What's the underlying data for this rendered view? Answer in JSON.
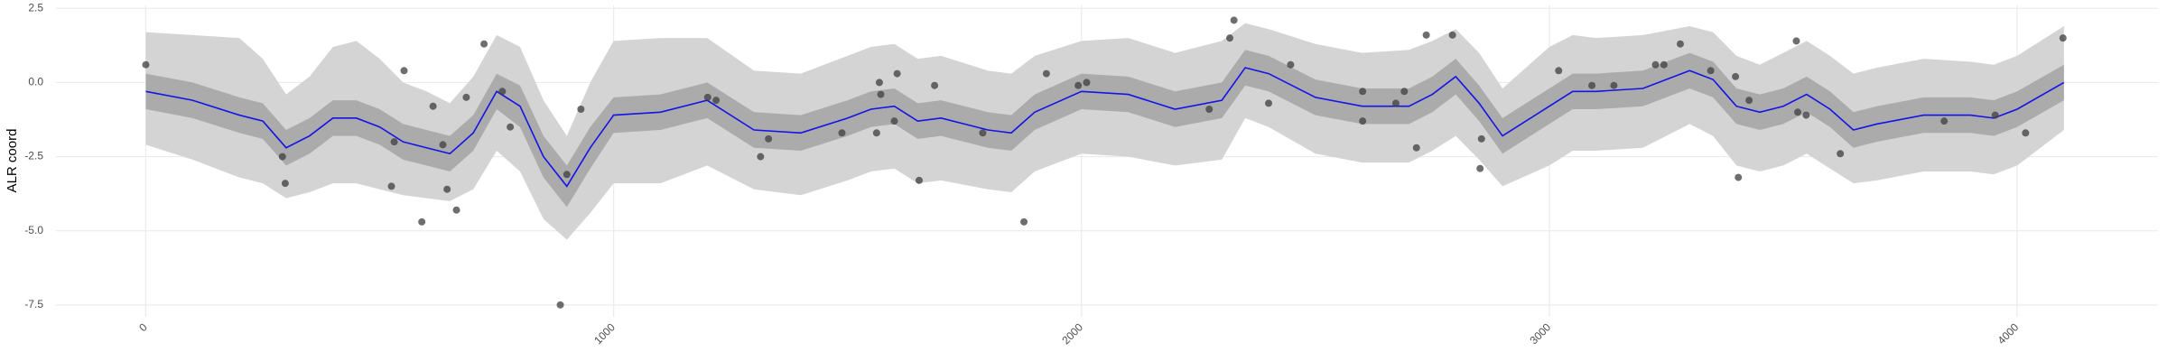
{
  "chart_data": {
    "type": "line",
    "y_label": "ALR coord",
    "x": [
      0,
      100,
      200,
      250,
      300,
      350,
      400,
      450,
      500,
      550,
      600,
      650,
      700,
      750,
      800,
      850,
      900,
      950,
      1000,
      1100,
      1200,
      1300,
      1400,
      1500,
      1550,
      1600,
      1650,
      1700,
      1800,
      1850,
      1900,
      2000,
      2100,
      2200,
      2300,
      2350,
      2400,
      2500,
      2600,
      2700,
      2750,
      2800,
      2850,
      2900,
      3000,
      3050,
      3100,
      3200,
      3300,
      3350,
      3400,
      3450,
      3500,
      3550,
      3600,
      3650,
      3700,
      3800,
      3900,
      3950,
      4000,
      4100
    ],
    "line": {
      "color": "#1414e6",
      "values": [
        -0.3,
        -0.6,
        -1.1,
        -1.3,
        -2.2,
        -1.8,
        -1.2,
        -1.2,
        -1.5,
        -2.0,
        -2.2,
        -2.4,
        -1.7,
        -0.3,
        -0.8,
        -2.5,
        -3.5,
        -2.2,
        -1.1,
        -1.0,
        -0.6,
        -1.6,
        -1.7,
        -1.2,
        -0.9,
        -0.8,
        -1.3,
        -1.2,
        -1.6,
        -1.7,
        -1.0,
        -0.3,
        -0.4,
        -0.9,
        -0.6,
        0.5,
        0.3,
        -0.5,
        -0.8,
        -0.8,
        -0.4,
        0.2,
        -0.7,
        -1.8,
        -0.8,
        -0.3,
        -0.3,
        -0.2,
        0.4,
        0.1,
        -0.8,
        -1.0,
        -0.8,
        -0.4,
        -0.9,
        -1.6,
        -1.4,
        -1.1,
        -1.1,
        -1.2,
        -0.9,
        0.0
      ]
    },
    "bands": [
      {
        "color": "#d4d4d4",
        "lower": [
          -2.1,
          -2.6,
          -3.2,
          -3.4,
          -3.9,
          -3.7,
          -3.4,
          -3.4,
          -3.6,
          -3.8,
          -3.9,
          -4.0,
          -3.6,
          -2.3,
          -3.0,
          -4.6,
          -5.3,
          -4.4,
          -3.4,
          -3.4,
          -2.8,
          -3.6,
          -3.8,
          -3.3,
          -3.0,
          -2.9,
          -3.4,
          -3.3,
          -3.6,
          -3.7,
          -3.0,
          -2.4,
          -2.5,
          -2.8,
          -2.6,
          -1.2,
          -1.5,
          -2.4,
          -2.7,
          -2.7,
          -2.3,
          -1.8,
          -2.6,
          -3.5,
          -2.8,
          -2.3,
          -2.3,
          -2.2,
          -1.4,
          -1.8,
          -2.8,
          -3.0,
          -2.8,
          -2.4,
          -2.9,
          -3.4,
          -3.3,
          -3.0,
          -3.0,
          -3.1,
          -2.8,
          -1.6
        ],
        "upper": [
          1.7,
          1.6,
          1.5,
          0.8,
          -0.4,
          0.2,
          1.2,
          1.4,
          0.8,
          0.0,
          -0.3,
          -0.7,
          0.2,
          1.6,
          1.2,
          -0.6,
          -1.8,
          0.0,
          1.4,
          1.5,
          1.5,
          0.4,
          0.3,
          0.9,
          1.2,
          1.3,
          0.8,
          0.9,
          0.4,
          0.3,
          0.9,
          1.4,
          1.5,
          1.0,
          1.4,
          2.0,
          1.8,
          1.3,
          1.0,
          1.1,
          1.4,
          1.8,
          1.0,
          -0.2,
          1.2,
          1.6,
          1.5,
          1.6,
          1.9,
          1.7,
          0.9,
          0.6,
          1.0,
          1.4,
          0.9,
          0.3,
          0.5,
          0.8,
          0.7,
          0.6,
          0.9,
          1.9
        ]
      },
      {
        "color": "#ababab",
        "lower": [
          -0.9,
          -1.2,
          -1.7,
          -1.9,
          -2.8,
          -2.4,
          -1.8,
          -1.8,
          -2.1,
          -2.6,
          -2.8,
          -3.0,
          -2.3,
          -0.9,
          -1.5,
          -3.2,
          -4.2,
          -2.9,
          -1.7,
          -1.6,
          -1.2,
          -2.2,
          -2.3,
          -1.8,
          -1.5,
          -1.4,
          -1.9,
          -1.8,
          -2.2,
          -2.3,
          -1.6,
          -0.9,
          -1.0,
          -1.5,
          -1.2,
          -0.1,
          -0.3,
          -1.1,
          -1.4,
          -1.4,
          -1.0,
          -0.4,
          -1.3,
          -2.4,
          -1.4,
          -0.9,
          -0.9,
          -0.8,
          -0.2,
          -0.5,
          -1.4,
          -1.6,
          -1.4,
          -1.0,
          -1.5,
          -2.2,
          -2.0,
          -1.7,
          -1.7,
          -1.8,
          -1.5,
          -0.6
        ],
        "upper": [
          0.3,
          0.0,
          -0.5,
          -0.7,
          -1.6,
          -1.2,
          -0.6,
          -0.6,
          -0.9,
          -1.4,
          -1.6,
          -1.8,
          -1.1,
          0.3,
          -0.1,
          -1.8,
          -2.8,
          -1.5,
          -0.5,
          -0.4,
          0.0,
          -1.0,
          -1.1,
          -0.6,
          -0.3,
          -0.2,
          -0.7,
          -0.6,
          -1.0,
          -1.1,
          -0.4,
          0.3,
          0.2,
          -0.3,
          0.0,
          1.1,
          0.9,
          0.1,
          -0.2,
          -0.2,
          0.2,
          0.8,
          -0.1,
          -1.2,
          -0.2,
          0.3,
          0.3,
          0.4,
          1.0,
          0.7,
          -0.2,
          -0.4,
          -0.2,
          0.2,
          -0.3,
          -1.0,
          -0.8,
          -0.5,
          -0.5,
          -0.6,
          -0.3,
          0.6
        ]
      }
    ],
    "points": {
      "color": "#3d3d3d",
      "x": [
        0,
        292,
        298,
        525,
        531,
        552,
        590,
        614,
        635,
        644,
        664,
        685,
        723,
        762,
        779,
        886,
        900,
        930,
        1201,
        1219,
        1314,
        1331,
        1488,
        1562,
        1568,
        1571,
        1600,
        1606,
        1653,
        1686,
        1789,
        1877,
        1925,
        1993,
        2011,
        2273,
        2317,
        2326,
        2400,
        2447,
        2601,
        2601,
        2672,
        2690,
        2716,
        2737,
        2793,
        2852,
        2855,
        3020,
        3091,
        3138,
        3227,
        3245,
        3280,
        3345,
        3398,
        3404,
        3427,
        3528,
        3531,
        3549,
        3622,
        3844,
        3953,
        4018,
        4098
      ],
      "y": [
        0.6,
        -2.5,
        -3.4,
        -3.5,
        -2.0,
        0.4,
        -4.7,
        -0.8,
        -2.1,
        -3.6,
        -4.3,
        -0.5,
        1.3,
        -0.3,
        -1.5,
        -7.5,
        -3.1,
        -0.9,
        -0.5,
        -0.6,
        -2.5,
        -1.9,
        -1.7,
        -1.7,
        0.0,
        -0.4,
        -1.3,
        0.3,
        -3.3,
        -0.1,
        -1.7,
        -4.7,
        0.3,
        -0.1,
        0.0,
        -0.9,
        1.5,
        2.1,
        -0.7,
        0.6,
        -1.3,
        -0.3,
        -0.7,
        -0.3,
        -2.2,
        1.6,
        1.6,
        -2.9,
        -1.9,
        0.4,
        -0.1,
        -0.1,
        0.6,
        0.6,
        1.3,
        0.4,
        0.2,
        -3.2,
        -0.6,
        1.4,
        -1.0,
        -1.1,
        -2.4,
        -1.3,
        -1.1,
        -1.7,
        1.5
      ]
    },
    "xlim": [
      -192,
      4301
    ],
    "ylim": [
      -7.9,
      2.6
    ],
    "xticks": [
      0,
      1000,
      2000,
      3000,
      4000
    ],
    "yticks": [
      2.5,
      {
        "value": 0,
        "label": "0.0"
      },
      -2.5,
      {
        "value": -5,
        "label": "-5.0"
      },
      -7.5
    ],
    "grid": true
  }
}
